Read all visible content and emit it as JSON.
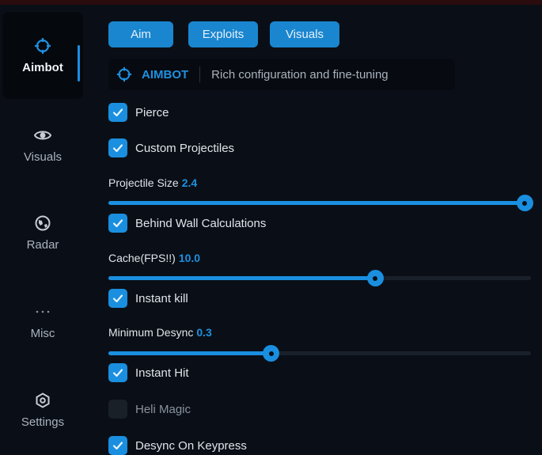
{
  "sidebar": {
    "items": [
      {
        "label": "Aimbot",
        "icon": "crosshair-icon",
        "active": true
      },
      {
        "label": "Visuals",
        "icon": "eye-icon",
        "active": false
      },
      {
        "label": "Radar",
        "icon": "globe-icon",
        "active": false
      },
      {
        "label": "Misc",
        "icon": "more-icon",
        "active": false
      },
      {
        "label": "Settings",
        "icon": "gear-icon",
        "active": false
      }
    ]
  },
  "tabs": [
    {
      "label": "Aim"
    },
    {
      "label": "Exploits"
    },
    {
      "label": "Visuals"
    }
  ],
  "header": {
    "title": "AIMBOT",
    "description": "Rich configuration and fine-tuning"
  },
  "options": {
    "pierce": {
      "label": "Pierce",
      "checked": true
    },
    "custom_projectiles": {
      "label": "Custom Projectiles",
      "checked": true
    },
    "projectile_size": {
      "label": "Projectile Size",
      "value": "2.4",
      "fill": 1.0
    },
    "behind_wall": {
      "label": "Behind Wall Calculations",
      "checked": true
    },
    "cache": {
      "label": "Cache(FPS!!)",
      "value": "10.0",
      "fill": 0.64
    },
    "instant_kill": {
      "label": "Instant kill",
      "checked": true
    },
    "min_desync": {
      "label": "Minimum Desync",
      "value": "0.3",
      "fill": 0.39
    },
    "instant_hit": {
      "label": "Instant Hit",
      "checked": true
    },
    "heli_magic": {
      "label": "Heli Magic",
      "checked": false
    },
    "desync_keypress": {
      "label": "Desync On Keypress",
      "checked": true
    }
  },
  "colors": {
    "accent": "#1a8fe0",
    "background": "#0a0f17"
  }
}
